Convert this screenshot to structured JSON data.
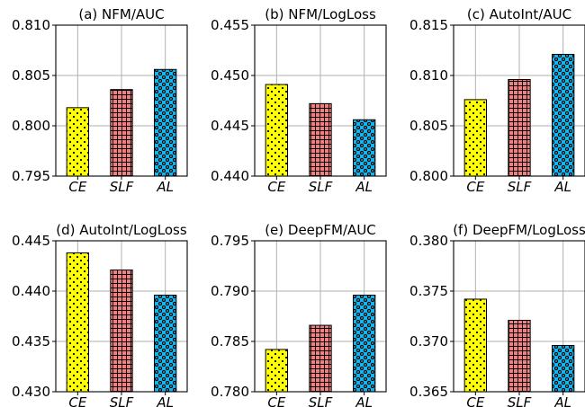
{
  "chart_data": [
    {
      "type": "bar",
      "title": "(a) NFM/AUC",
      "categories": [
        "CE",
        "SLF",
        "AL"
      ],
      "values": [
        0.8018,
        0.8036,
        0.8056
      ],
      "ylim": [
        0.795,
        0.81
      ],
      "yticks": [
        "0.795",
        "0.800",
        "0.805",
        "0.810"
      ],
      "colors": [
        "#ffff00",
        "#f08080",
        "#1ab2e8"
      ],
      "patterns": [
        "dots",
        "grid",
        "rings"
      ],
      "grid": true
    },
    {
      "type": "bar",
      "title": "(b) NFM/LogLoss",
      "categories": [
        "CE",
        "SLF",
        "AL"
      ],
      "values": [
        0.4491,
        0.4472,
        0.4456
      ],
      "ylim": [
        0.44,
        0.455
      ],
      "yticks": [
        "0.440",
        "0.445",
        "0.450",
        "0.455"
      ],
      "colors": [
        "#ffff00",
        "#f08080",
        "#1ab2e8"
      ],
      "patterns": [
        "dots",
        "grid",
        "rings"
      ],
      "grid": true
    },
    {
      "type": "bar",
      "title": "(c) AutoInt/AUC",
      "categories": [
        "CE",
        "SLF",
        "AL"
      ],
      "values": [
        0.8076,
        0.8096,
        0.8121
      ],
      "ylim": [
        0.8,
        0.815
      ],
      "yticks": [
        "0.800",
        "0.805",
        "0.810",
        "0.815"
      ],
      "colors": [
        "#ffff00",
        "#f08080",
        "#1ab2e8"
      ],
      "patterns": [
        "dots",
        "grid",
        "rings"
      ],
      "grid": true
    },
    {
      "type": "bar",
      "title": "(d) AutoInt/LogLoss",
      "categories": [
        "CE",
        "SLF",
        "AL"
      ],
      "values": [
        0.4438,
        0.4421,
        0.4396
      ],
      "ylim": [
        0.43,
        0.445
      ],
      "yticks": [
        "0.430",
        "0.435",
        "0.440",
        "0.445"
      ],
      "colors": [
        "#ffff00",
        "#f08080",
        "#1ab2e8"
      ],
      "patterns": [
        "dots",
        "grid",
        "rings"
      ],
      "grid": true
    },
    {
      "type": "bar",
      "title": "(e) DeepFM/AUC",
      "categories": [
        "CE",
        "SLF",
        "AL"
      ],
      "values": [
        0.7842,
        0.7866,
        0.7896
      ],
      "ylim": [
        0.78,
        0.795
      ],
      "yticks": [
        "0.780",
        "0.785",
        "0.790",
        "0.795"
      ],
      "colors": [
        "#ffff00",
        "#f08080",
        "#1ab2e8"
      ],
      "patterns": [
        "dots",
        "grid",
        "rings"
      ],
      "grid": true
    },
    {
      "type": "bar",
      "title": "(f) DeepFM/LogLoss",
      "categories": [
        "CE",
        "SLF",
        "AL"
      ],
      "values": [
        0.3742,
        0.3721,
        0.3696
      ],
      "ylim": [
        0.365,
        0.38
      ],
      "yticks": [
        "0.365",
        "0.370",
        "0.375",
        "0.380"
      ],
      "colors": [
        "#ffff00",
        "#f08080",
        "#1ab2e8"
      ],
      "patterns": [
        "dots",
        "grid",
        "rings"
      ],
      "grid": true
    }
  ]
}
